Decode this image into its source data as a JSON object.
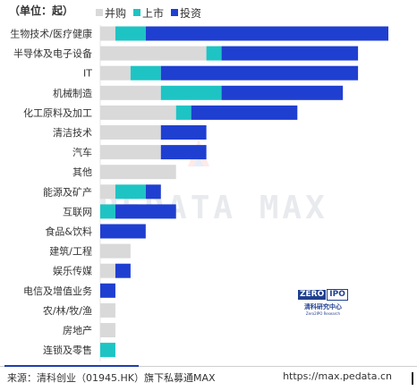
{
  "unit_label": "（单位：起）",
  "legend": [
    {
      "label": "并购",
      "color": "#d9d9d9"
    },
    {
      "label": "上市",
      "color": "#1ec4c4"
    },
    {
      "label": "投资",
      "color": "#1f3fd1"
    }
  ],
  "chart_data": {
    "type": "bar",
    "orientation": "horizontal",
    "stacked": true,
    "categories": [
      "生物技术/医疗健康",
      "半导体及电子设备",
      "IT",
      "机械制造",
      "化工原料及加工",
      "清洁技术",
      "汽车",
      "其他",
      "能源及矿产",
      "互联网",
      "食品&饮料",
      "建筑/工程",
      "娱乐传媒",
      "电信及增值业务",
      "农/林/牧/渔",
      "房地产",
      "连锁及零售"
    ],
    "series": [
      {
        "name": "并购",
        "color": "#d9d9d9",
        "values": [
          1,
          7,
          2,
          4,
          5,
          4,
          4,
          5,
          1,
          0,
          0,
          2,
          1,
          0,
          1,
          1,
          0
        ]
      },
      {
        "name": "上市",
        "color": "#1ec4c4",
        "values": [
          2,
          1,
          2,
          4,
          1,
          0,
          0,
          0,
          2,
          1,
          0,
          0,
          0,
          0,
          0,
          0,
          1
        ]
      },
      {
        "name": "投资",
        "color": "#1f3fd1",
        "values": [
          16,
          9,
          13,
          8,
          7,
          3,
          3,
          0,
          1,
          4,
          3,
          0,
          1,
          1,
          0,
          0,
          0
        ]
      }
    ],
    "xlim": [
      0,
      19
    ],
    "grid": false,
    "legend_position": "top-left"
  },
  "watermark": "PEDATA MAX",
  "brand": {
    "logo_left": "ZERO",
    "logo_right": "IPO",
    "name_cn": "清科研究中心",
    "name_en": "Zero2IPO Research"
  },
  "footer": {
    "source": "来源：清科创业（01945.HK）旗下私募通MAX",
    "url": "https://max.pedata.cn"
  }
}
